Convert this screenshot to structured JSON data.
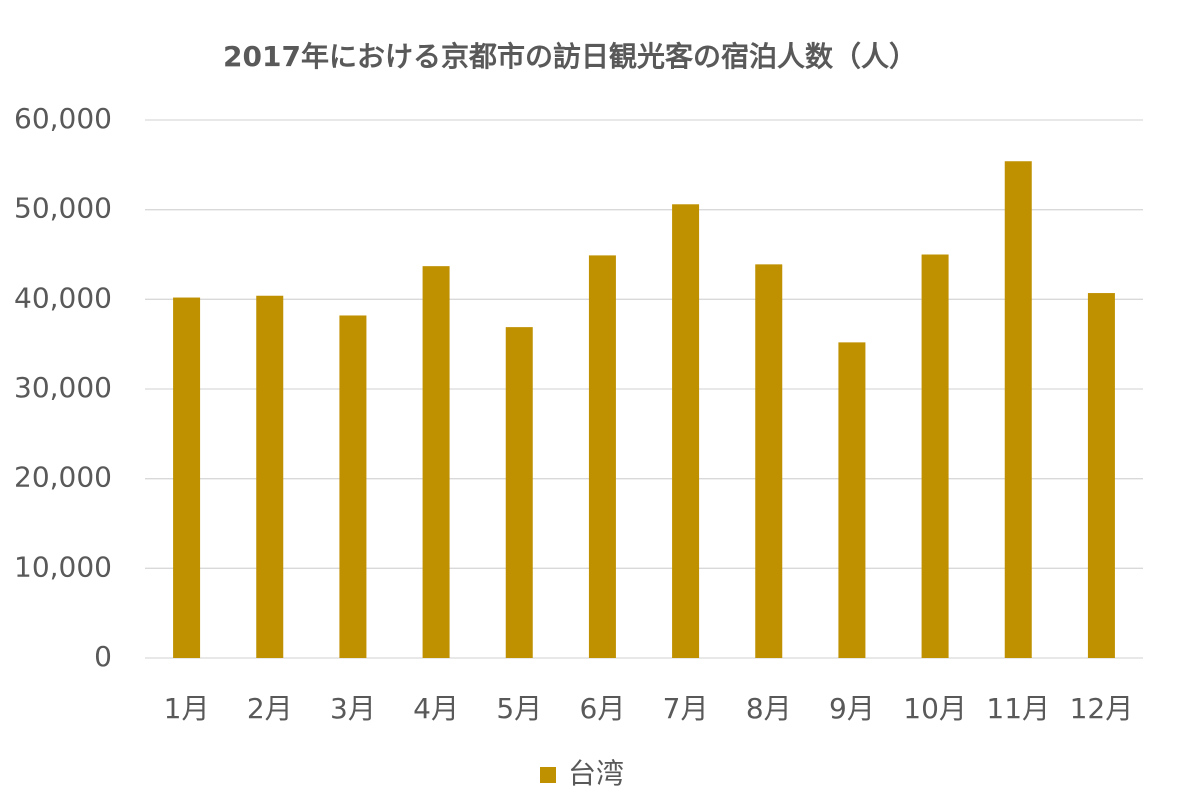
{
  "chart_data": {
    "type": "bar",
    "title": "2017年における京都市の訪日観光客の宿泊人数（人）",
    "categories": [
      "1月",
      "2月",
      "3月",
      "4月",
      "5月",
      "6月",
      "7月",
      "8月",
      "9月",
      "10月",
      "11月",
      "12月"
    ],
    "series": [
      {
        "name": "台湾",
        "color": "#bf9000",
        "values": [
          40200,
          40400,
          38200,
          43700,
          36900,
          44900,
          50600,
          43900,
          35200,
          45000,
          55400,
          40700
        ]
      }
    ],
    "ylim": [
      0,
      60000
    ],
    "yticks": [
      0,
      {
        "value": 10000,
        "label": "10,000"
      },
      {
        "value": 20000,
        "label": "20,000"
      },
      {
        "value": 30000,
        "label": "30,000"
      },
      {
        "value": 40000,
        "label": "40,000"
      },
      {
        "value": 50000,
        "label": "50,000"
      },
      {
        "value": 60000,
        "label": "60,000"
      }
    ],
    "grid": true,
    "legend": "bottom"
  }
}
